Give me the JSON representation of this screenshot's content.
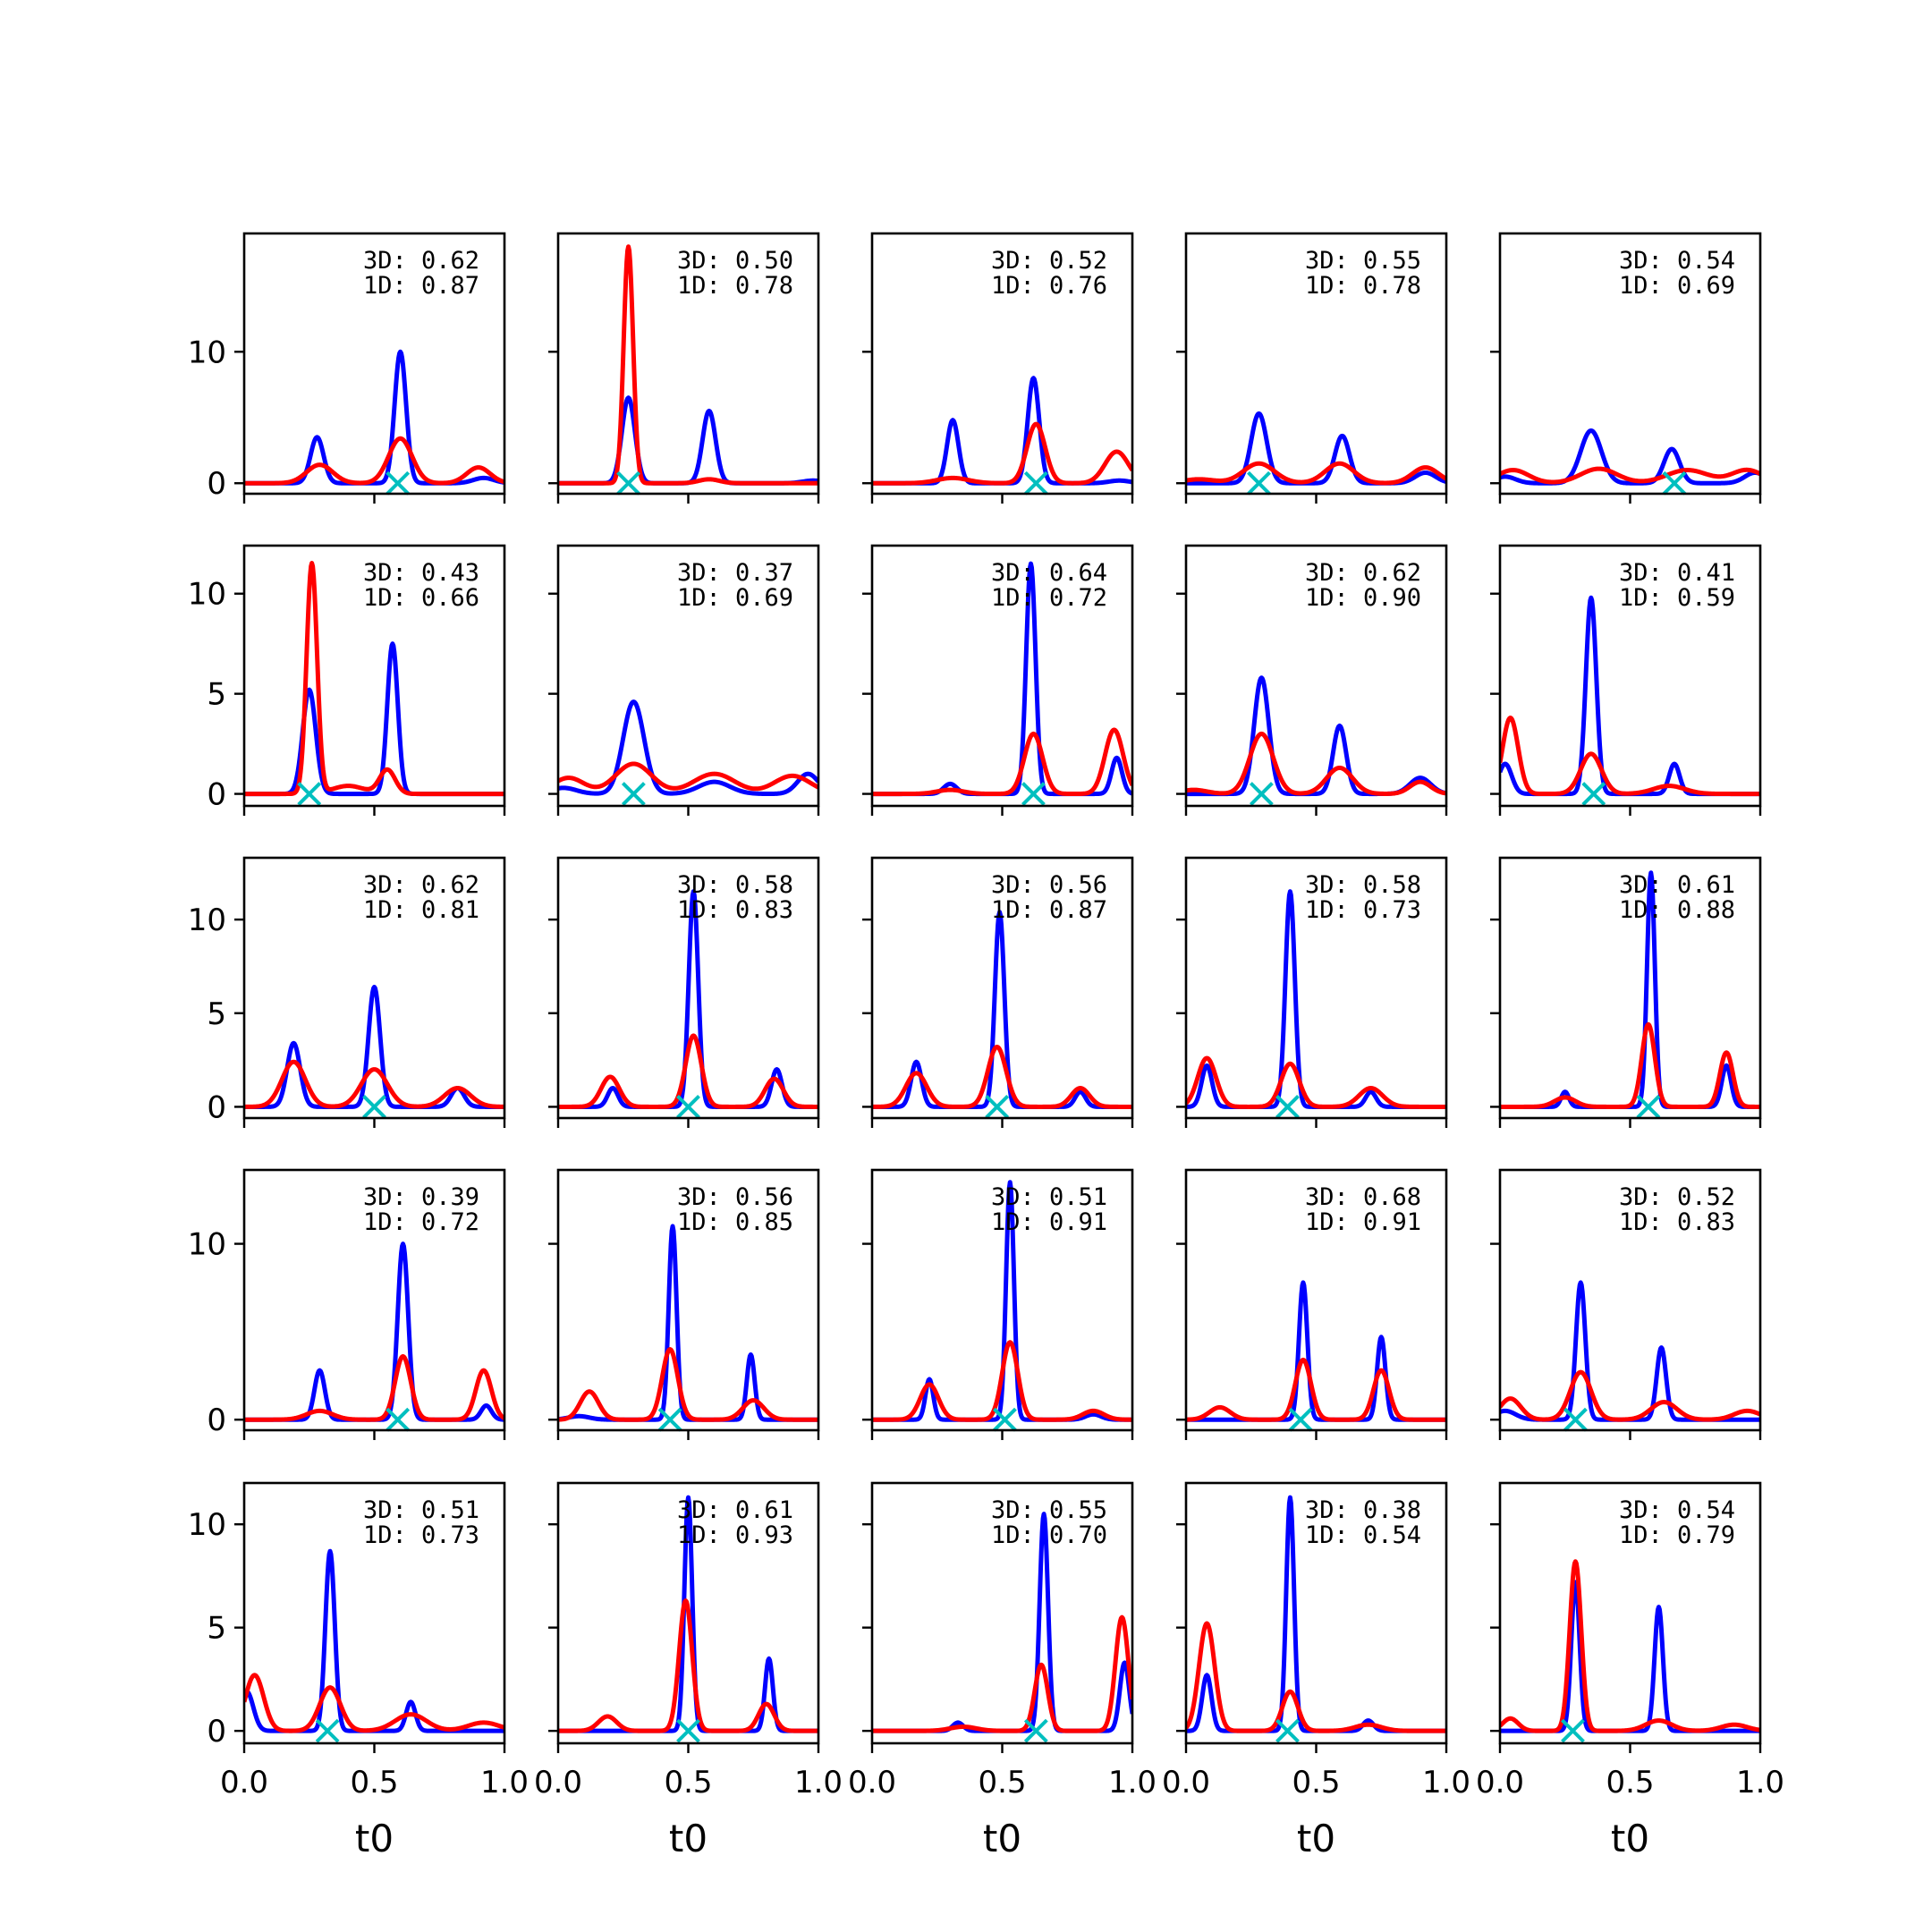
{
  "chart_data": {
    "type": "line",
    "layout": {
      "rows": 5,
      "cols": 5
    },
    "xlabel": "t0",
    "xlim": [
      0.0,
      1.0
    ],
    "x_ticks": [
      0.0,
      0.5,
      1.0
    ],
    "x_tick_labels": [
      "0.0",
      "0.5",
      "1.0"
    ],
    "colors": {
      "series_a": "#0000ff",
      "series_b": "#ff0000",
      "marker": "#00bfbf"
    },
    "rows": [
      {
        "ylim": [
          -0.8,
          19.0
        ],
        "y_ticks": [
          0,
          10
        ],
        "y_tick_labels": [
          "0",
          "10"
        ]
      },
      {
        "ylim": [
          -0.6,
          12.4
        ],
        "y_ticks": [
          0,
          5,
          10
        ],
        "y_tick_labels": [
          "0",
          "5",
          "10"
        ]
      },
      {
        "ylim": [
          -0.6,
          13.3
        ],
        "y_ticks": [
          0,
          5,
          10
        ],
        "y_tick_labels": [
          "0",
          "5",
          "10"
        ]
      },
      {
        "ylim": [
          -0.6,
          14.2
        ],
        "y_ticks": [
          0,
          10
        ],
        "y_tick_labels": [
          "0",
          "10"
        ]
      },
      {
        "ylim": [
          -0.6,
          12.0
        ],
        "y_ticks": [
          0,
          5,
          10
        ],
        "y_tick_labels": [
          "0",
          "5",
          "10"
        ]
      }
    ],
    "panels": [
      {
        "annotations": [
          "3D: 0.62",
          "1D: 0.87"
        ],
        "marker_x": 0.59,
        "blue": [
          [
            0.28,
            3.5,
            0.025
          ],
          [
            0.6,
            10.0,
            0.022
          ],
          [
            0.92,
            0.4,
            0.04
          ]
        ],
        "red": [
          [
            0.29,
            1.4,
            0.05
          ],
          [
            0.6,
            3.4,
            0.045
          ],
          [
            0.9,
            1.2,
            0.045
          ]
        ]
      },
      {
        "annotations": [
          "3D: 0.50",
          "1D: 0.78"
        ],
        "marker_x": 0.27,
        "blue": [
          [
            0.27,
            6.5,
            0.025
          ],
          [
            0.58,
            5.5,
            0.025
          ],
          [
            0.98,
            0.2,
            0.04
          ]
        ],
        "red": [
          [
            0.27,
            18.0,
            0.018
          ],
          [
            0.58,
            0.3,
            0.04
          ]
        ]
      },
      {
        "annotations": [
          "3D: 0.52",
          "1D: 0.76"
        ],
        "marker_x": 0.63,
        "blue": [
          [
            0.31,
            4.8,
            0.022
          ],
          [
            0.62,
            8.0,
            0.022
          ],
          [
            0.95,
            0.2,
            0.04
          ]
        ],
        "red": [
          [
            0.31,
            0.4,
            0.06
          ],
          [
            0.63,
            4.5,
            0.035
          ],
          [
            0.94,
            2.4,
            0.045
          ]
        ]
      },
      {
        "annotations": [
          "3D: 0.55",
          "1D: 0.78"
        ],
        "marker_x": 0.28,
        "blue": [
          [
            0.28,
            5.3,
            0.03
          ],
          [
            0.6,
            3.6,
            0.028
          ],
          [
            0.92,
            0.8,
            0.04
          ]
        ],
        "red": [
          [
            0.28,
            1.5,
            0.06
          ],
          [
            0.59,
            1.5,
            0.055
          ],
          [
            0.92,
            1.2,
            0.05
          ],
          [
            0.05,
            0.3,
            0.06
          ]
        ]
      },
      {
        "annotations": [
          "3D: 0.54",
          "1D: 0.69"
        ],
        "marker_x": 0.67,
        "blue": [
          [
            0.35,
            4.0,
            0.04
          ],
          [
            0.66,
            2.6,
            0.03
          ],
          [
            0.98,
            0.8,
            0.04
          ],
          [
            0.02,
            0.5,
            0.04
          ]
        ],
        "red": [
          [
            0.05,
            1.0,
            0.06
          ],
          [
            0.38,
            1.1,
            0.07
          ],
          [
            0.72,
            1.0,
            0.08
          ],
          [
            0.95,
            1.0,
            0.06
          ]
        ]
      },
      {
        "annotations": [
          "3D: 0.43",
          "1D: 0.66"
        ],
        "marker_x": 0.25,
        "blue": [
          [
            0.25,
            5.2,
            0.025
          ],
          [
            0.57,
            7.5,
            0.02
          ]
        ],
        "red": [
          [
            0.26,
            11.5,
            0.02
          ],
          [
            0.55,
            1.2,
            0.03
          ],
          [
            0.4,
            0.4,
            0.06
          ]
        ]
      },
      {
        "annotations": [
          "3D: 0.37",
          "1D: 0.69"
        ],
        "marker_x": 0.29,
        "blue": [
          [
            0.29,
            4.6,
            0.04
          ],
          [
            0.6,
            0.6,
            0.06
          ],
          [
            0.96,
            1.0,
            0.04
          ],
          [
            0.02,
            0.3,
            0.05
          ]
        ],
        "red": [
          [
            0.04,
            0.8,
            0.06
          ],
          [
            0.29,
            1.5,
            0.07
          ],
          [
            0.6,
            1.0,
            0.08
          ],
          [
            0.9,
            0.9,
            0.07
          ]
        ]
      },
      {
        "annotations": [
          "3D: 0.64",
          "1D: 0.72"
        ],
        "marker_x": 0.62,
        "blue": [
          [
            0.61,
            11.5,
            0.018
          ],
          [
            0.94,
            1.8,
            0.02
          ],
          [
            0.3,
            0.5,
            0.025
          ]
        ],
        "red": [
          [
            0.62,
            3.0,
            0.035
          ],
          [
            0.93,
            3.2,
            0.035
          ],
          [
            0.3,
            0.2,
            0.05
          ]
        ]
      },
      {
        "annotations": [
          "3D: 0.62",
          "1D: 0.90"
        ],
        "marker_x": 0.29,
        "blue": [
          [
            0.29,
            5.8,
            0.028
          ],
          [
            0.59,
            3.4,
            0.025
          ],
          [
            0.9,
            0.8,
            0.04
          ]
        ],
        "red": [
          [
            0.29,
            3.0,
            0.045
          ],
          [
            0.59,
            1.3,
            0.05
          ],
          [
            0.9,
            0.6,
            0.04
          ],
          [
            0.03,
            0.2,
            0.05
          ]
        ]
      },
      {
        "annotations": [
          "3D: 0.41",
          "1D: 0.59"
        ],
        "marker_x": 0.36,
        "blue": [
          [
            0.35,
            9.8,
            0.02
          ],
          [
            0.67,
            1.5,
            0.02
          ],
          [
            0.02,
            1.5,
            0.025
          ]
        ],
        "red": [
          [
            0.04,
            3.8,
            0.03
          ],
          [
            0.35,
            2.0,
            0.04
          ],
          [
            0.65,
            0.4,
            0.06
          ]
        ]
      },
      {
        "annotations": [
          "3D: 0.62",
          "1D: 0.81"
        ],
        "marker_x": 0.5,
        "blue": [
          [
            0.19,
            3.4,
            0.025
          ],
          [
            0.5,
            6.4,
            0.022
          ],
          [
            0.82,
            1.0,
            0.025
          ]
        ],
        "red": [
          [
            0.19,
            2.4,
            0.045
          ],
          [
            0.5,
            2.0,
            0.05
          ],
          [
            0.82,
            1.0,
            0.05
          ]
        ]
      },
      {
        "annotations": [
          "3D: 0.58",
          "1D: 0.83"
        ],
        "marker_x": 0.5,
        "blue": [
          [
            0.52,
            11.5,
            0.018
          ],
          [
            0.84,
            2.0,
            0.02
          ],
          [
            0.21,
            1.0,
            0.02
          ]
        ],
        "red": [
          [
            0.2,
            1.6,
            0.035
          ],
          [
            0.52,
            3.8,
            0.03
          ],
          [
            0.83,
            1.5,
            0.035
          ]
        ]
      },
      {
        "annotations": [
          "3D: 0.56",
          "1D: 0.87"
        ],
        "marker_x": 0.48,
        "blue": [
          [
            0.49,
            10.4,
            0.018
          ],
          [
            0.8,
            0.8,
            0.02
          ],
          [
            0.17,
            2.4,
            0.02
          ]
        ],
        "red": [
          [
            0.17,
            1.8,
            0.04
          ],
          [
            0.48,
            3.2,
            0.035
          ],
          [
            0.8,
            1.0,
            0.035
          ]
        ]
      },
      {
        "annotations": [
          "3D: 0.58",
          "1D: 0.73"
        ],
        "marker_x": 0.39,
        "blue": [
          [
            0.4,
            11.5,
            0.018
          ],
          [
            0.71,
            0.8,
            0.02
          ],
          [
            0.08,
            2.2,
            0.02
          ]
        ],
        "red": [
          [
            0.08,
            2.6,
            0.035
          ],
          [
            0.4,
            2.3,
            0.035
          ],
          [
            0.71,
            1.0,
            0.045
          ]
        ]
      },
      {
        "annotations": [
          "3D: 0.61",
          "1D: 0.88"
        ],
        "marker_x": 0.57,
        "blue": [
          [
            0.58,
            12.5,
            0.015
          ],
          [
            0.87,
            2.2,
            0.018
          ],
          [
            0.25,
            0.8,
            0.015
          ]
        ],
        "red": [
          [
            0.25,
            0.5,
            0.04
          ],
          [
            0.57,
            4.4,
            0.025
          ],
          [
            0.87,
            2.9,
            0.025
          ]
        ]
      },
      {
        "annotations": [
          "3D: 0.39",
          "1D: 0.72"
        ],
        "marker_x": 0.59,
        "blue": [
          [
            0.29,
            2.8,
            0.02
          ],
          [
            0.61,
            10.0,
            0.02
          ],
          [
            0.93,
            0.8,
            0.02
          ]
        ],
        "red": [
          [
            0.29,
            0.5,
            0.05
          ],
          [
            0.61,
            3.6,
            0.03
          ],
          [
            0.92,
            2.8,
            0.03
          ]
        ]
      },
      {
        "annotations": [
          "3D: 0.56",
          "1D: 0.85"
        ],
        "marker_x": 0.43,
        "blue": [
          [
            0.44,
            11.0,
            0.015
          ],
          [
            0.74,
            3.7,
            0.015
          ],
          [
            0.08,
            0.2,
            0.04
          ]
        ],
        "red": [
          [
            0.12,
            1.6,
            0.035
          ],
          [
            0.43,
            4.0,
            0.03
          ],
          [
            0.75,
            1.1,
            0.04
          ]
        ]
      },
      {
        "annotations": [
          "3D: 0.51",
          "1D: 0.91"
        ],
        "marker_x": 0.51,
        "blue": [
          [
            0.22,
            2.3,
            0.015
          ],
          [
            0.53,
            13.5,
            0.015
          ],
          [
            0.85,
            0.3,
            0.03
          ]
        ],
        "red": [
          [
            0.22,
            2.0,
            0.035
          ],
          [
            0.53,
            4.4,
            0.03
          ],
          [
            0.85,
            0.5,
            0.04
          ]
        ]
      },
      {
        "annotations": [
          "3D: 0.68",
          "1D: 0.91"
        ],
        "marker_x": 0.44,
        "blue": [
          [
            0.45,
            7.8,
            0.016
          ],
          [
            0.75,
            4.7,
            0.016
          ]
        ],
        "red": [
          [
            0.13,
            0.7,
            0.04
          ],
          [
            0.45,
            3.4,
            0.03
          ],
          [
            0.75,
            2.8,
            0.03
          ]
        ]
      },
      {
        "annotations": [
          "3D: 0.52",
          "1D: 0.83"
        ],
        "marker_x": 0.29,
        "blue": [
          [
            0.31,
            7.8,
            0.018
          ],
          [
            0.62,
            4.1,
            0.018
          ],
          [
            0.02,
            0.5,
            0.04
          ]
        ],
        "red": [
          [
            0.04,
            1.2,
            0.04
          ],
          [
            0.31,
            2.7,
            0.04
          ],
          [
            0.63,
            1.0,
            0.05
          ],
          [
            0.95,
            0.5,
            0.05
          ]
        ]
      },
      {
        "annotations": [
          "3D: 0.51",
          "1D: 0.73"
        ],
        "marker_x": 0.32,
        "blue": [
          [
            0.33,
            8.7,
            0.018
          ],
          [
            0.64,
            1.4,
            0.018
          ],
          [
            0.01,
            1.9,
            0.025
          ]
        ],
        "red": [
          [
            0.04,
            2.7,
            0.035
          ],
          [
            0.33,
            2.1,
            0.04
          ],
          [
            0.64,
            0.8,
            0.06
          ],
          [
            0.92,
            0.4,
            0.06
          ]
        ]
      },
      {
        "annotations": [
          "3D: 0.61",
          "1D: 0.93"
        ],
        "marker_x": 0.5,
        "blue": [
          [
            0.5,
            11.3,
            0.015
          ],
          [
            0.81,
            3.5,
            0.015
          ]
        ],
        "red": [
          [
            0.19,
            0.7,
            0.035
          ],
          [
            0.49,
            6.3,
            0.025
          ],
          [
            0.8,
            1.3,
            0.03
          ]
        ]
      },
      {
        "annotations": [
          "3D: 0.55",
          "1D: 0.70"
        ],
        "marker_x": 0.63,
        "blue": [
          [
            0.33,
            0.4,
            0.02
          ],
          [
            0.66,
            10.5,
            0.016
          ],
          [
            0.97,
            3.3,
            0.018
          ]
        ],
        "red": [
          [
            0.65,
            3.2,
            0.025
          ],
          [
            0.96,
            5.5,
            0.025
          ],
          [
            0.35,
            0.2,
            0.05
          ]
        ]
      },
      {
        "annotations": [
          "3D: 0.38",
          "1D: 0.54"
        ],
        "marker_x": 0.39,
        "blue": [
          [
            0.08,
            2.7,
            0.018
          ],
          [
            0.4,
            11.3,
            0.015
          ],
          [
            0.7,
            0.5,
            0.02
          ]
        ],
        "red": [
          [
            0.08,
            5.2,
            0.03
          ],
          [
            0.4,
            1.9,
            0.03
          ],
          [
            0.7,
            0.3,
            0.05
          ]
        ]
      },
      {
        "annotations": [
          "3D: 0.54",
          "1D: 0.79"
        ],
        "marker_x": 0.28,
        "blue": [
          [
            0.29,
            7.2,
            0.016
          ],
          [
            0.61,
            6.0,
            0.016
          ]
        ],
        "red": [
          [
            0.04,
            0.6,
            0.03
          ],
          [
            0.29,
            8.2,
            0.022
          ],
          [
            0.61,
            0.5,
            0.05
          ],
          [
            0.9,
            0.3,
            0.05
          ]
        ]
      }
    ]
  }
}
